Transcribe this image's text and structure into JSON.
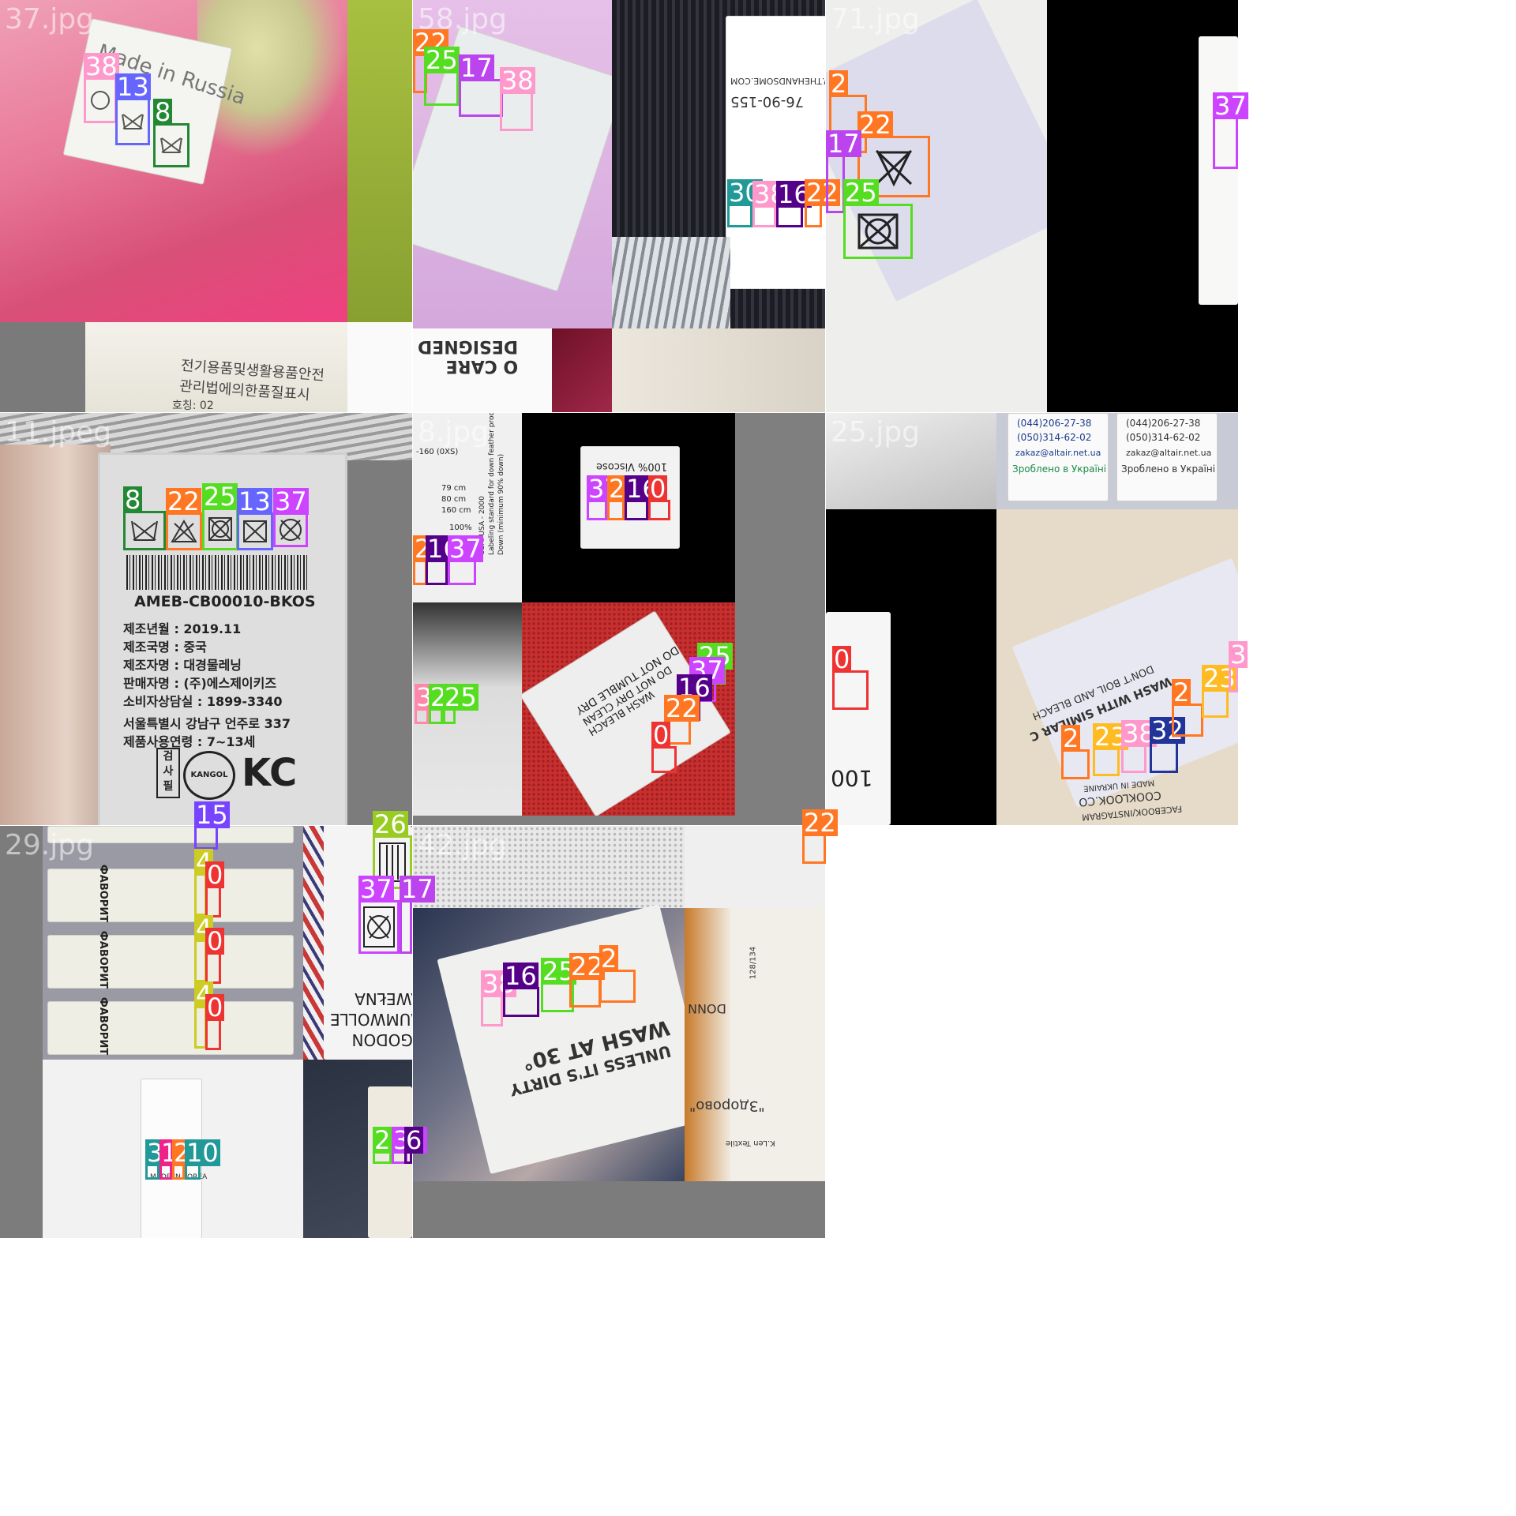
{
  "mosaic": {
    "cells": [
      {
        "id": "cell-37",
        "filename": "37.jpg",
        "tiles_text": {
          "korean_notice": "전기용품및생활용품안전\n관리법에의한품질표시",
          "size_line": "호칭:   02",
          "made_in": "Made in Russia"
        },
        "detections": [
          {
            "cls": "38",
            "color": "#ff99cc"
          },
          {
            "cls": "13",
            "color": "#6666ff"
          },
          {
            "cls": "8",
            "color": "#228833"
          }
        ]
      },
      {
        "id": "cell-58",
        "filename": "58.jpg",
        "tiles_text": {
          "url": "WWW.THEHANDSOME.COM",
          "code": "76-90-155",
          "care_brand": "O CARE\nDESIGNED"
        },
        "detections": [
          {
            "cls": "22",
            "color": "#ff7722"
          },
          {
            "cls": "25",
            "color": "#55dd22"
          },
          {
            "cls": "17",
            "color": "#bb44ee"
          },
          {
            "cls": "38",
            "color": "#ff99cc"
          },
          {
            "cls": "30",
            "color": "#229999"
          },
          {
            "cls": "38",
            "color": "#ff99cc"
          },
          {
            "cls": "16",
            "color": "#550088"
          },
          {
            "cls": "22",
            "color": "#ff7722"
          }
        ]
      },
      {
        "id": "cell-71",
        "filename": "71.jpg",
        "detections": [
          {
            "cls": "2",
            "color": "#ff7722"
          },
          {
            "cls": "22",
            "color": "#ff7722"
          },
          {
            "cls": "17",
            "color": "#bb44ee"
          },
          {
            "cls": "25",
            "color": "#55dd22"
          },
          {
            "cls": "37",
            "color": "#cc44ff"
          }
        ]
      },
      {
        "id": "cell-11",
        "filename": "11.jpeg",
        "tiles_text": {
          "barcode_id": "AMEB-CB00010-BKOS",
          "lines": [
            "제조년월 : 2019.11",
            "제조국명 : 중국",
            "제조자명 : 대경물레닝",
            "판매자명 : (주)에스제이키즈",
            "소비자상담실 : 1899-3340"
          ],
          "lines2": [
            "서울특별시 강남구 언주로 337",
            "제품사용연령 : 7~13세"
          ],
          "inspect": "검\n사\n필",
          "brand": "KANGOL"
        },
        "detections": [
          {
            "cls": "8",
            "color": "#228833"
          },
          {
            "cls": "22",
            "color": "#ff7722"
          },
          {
            "cls": "25",
            "color": "#55dd22"
          },
          {
            "cls": "13",
            "color": "#6666ff"
          },
          {
            "cls": "37",
            "color": "#cc44ff"
          }
        ]
      },
      {
        "id": "cell-8",
        "filename": "8.jpg",
        "tiles_text": {
          "viscose": "100% Viscose",
          "sizes": [
            "-160 (0XS)",
            "79 cm",
            "80 cm",
            "160 cm",
            "100%"
          ],
          "usa": "USA: USA - 2000\nLabeling standard for down feather prod\nDown (minimum 90% down)",
          "red_label": [
            "DO NOT TUMBLE DRY",
            "DO NOT DRY CLEAN",
            "WASH BLEACH"
          ]
        },
        "detections": [
          {
            "cls": "37",
            "color": "#cc44ff"
          },
          {
            "cls": "2",
            "color": "#ff7722"
          },
          {
            "cls": "16",
            "color": "#550088"
          },
          {
            "cls": "0",
            "color": "#ee3333"
          },
          {
            "cls": "2",
            "color": "#ff7722"
          },
          {
            "cls": "16",
            "color": "#550088"
          },
          {
            "cls": "37",
            "color": "#cc44ff"
          },
          {
            "cls": "3",
            "color": "#ff88aa"
          },
          {
            "cls": "2",
            "color": "#55dd22"
          },
          {
            "cls": "25",
            "color": "#55dd22"
          },
          {
            "cls": "25",
            "color": "#55dd22"
          },
          {
            "cls": "37",
            "color": "#cc44ff"
          },
          {
            "cls": "16",
            "color": "#550088"
          },
          {
            "cls": "22",
            "color": "#ff7722"
          },
          {
            "cls": "0",
            "color": "#ee3333"
          }
        ]
      },
      {
        "id": "cell-25",
        "filename": "25.jpg",
        "tiles_text": {
          "phone1": "(044)206-27-38",
          "phone2": "(050)314-62-02",
          "email": "zakaz@altair.net.ua",
          "made_ua": "Зроблено в Україні",
          "made_ukraine": "MADE IN UKRAINE",
          "site": "COOKLOOK.CO",
          "social": "FACEBOOK/INSTAGRAM",
          "wash": "WASH WITH SIMILAR C",
          "boil": "DON'T BOIL AND BLEACH",
          "temp": "100"
        },
        "detections": [
          {
            "cls": "0",
            "color": "#ee3333"
          },
          {
            "cls": "2",
            "color": "#ff7722"
          },
          {
            "cls": "23",
            "color": "#ffbb22"
          },
          {
            "cls": "38",
            "color": "#ff99cc"
          },
          {
            "cls": "32",
            "color": "#223399"
          },
          {
            "cls": "2",
            "color": "#ff7722"
          },
          {
            "cls": "23",
            "color": "#ffbb22"
          },
          {
            "cls": "3",
            "color": "#ff99cc"
          },
          {
            "cls": "22",
            "color": "#ff7722"
          }
        ]
      },
      {
        "id": "cell-29",
        "filename": "29.jpg",
        "tiles_text": {
          "brand": "ФАВОРИТ",
          "knit": "ALGODON\nBAUMWOLLE\nBAWEŁNA",
          "made_korea": "MADE IN KOREA"
        },
        "detections": [
          {
            "cls": "15",
            "color": "#7744ff"
          },
          {
            "cls": "4",
            "color": "#cccc22"
          },
          {
            "cls": "0",
            "color": "#ee3333"
          },
          {
            "cls": "4",
            "color": "#cccc22"
          },
          {
            "cls": "0",
            "color": "#ee3333"
          },
          {
            "cls": "4",
            "color": "#cccc22"
          },
          {
            "cls": "0",
            "color": "#ee3333"
          },
          {
            "cls": "26",
            "color": "#99cc22"
          },
          {
            "cls": "37",
            "color": "#cc44ff"
          },
          {
            "cls": "17",
            "color": "#bb44ee"
          },
          {
            "cls": "31",
            "color": "#229999"
          },
          {
            "cls": "1",
            "color": "#ee2288"
          },
          {
            "cls": "2",
            "color": "#ff7722"
          },
          {
            "cls": "10",
            "color": "#229999"
          },
          {
            "cls": "25",
            "color": "#55dd22"
          },
          {
            "cls": "37",
            "color": "#cc44ff"
          },
          {
            "cls": "6",
            "color": "#550088"
          }
        ]
      },
      {
        "id": "cell-42",
        "filename": "42.jpg",
        "tiles_text": {
          "wash": "WASH AT 30°",
          "dirty": "UNLESS IT'S DIRTY",
          "brand_ru": "\"Здорово\"",
          "knit": "K.Len Textile",
          "don": "DONN",
          "sizes": "128/134"
        },
        "detections": [
          {
            "cls": "38",
            "color": "#ff99cc"
          },
          {
            "cls": "16",
            "color": "#550088"
          },
          {
            "cls": "25",
            "color": "#55dd22"
          },
          {
            "cls": "22",
            "color": "#ff7722"
          },
          {
            "cls": "2",
            "color": "#ff7722"
          }
        ]
      }
    ]
  }
}
